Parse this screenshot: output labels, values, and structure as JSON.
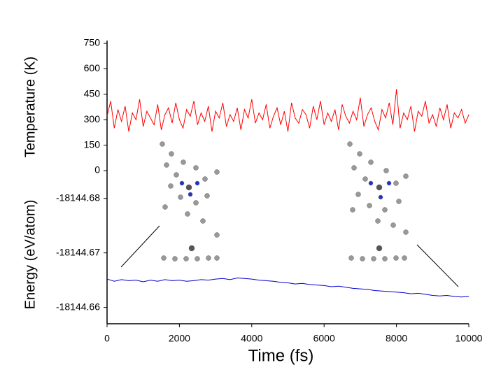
{
  "chart_data": [
    {
      "type": "line",
      "ylabel": "Temperature (K)",
      "x": [
        0,
        100,
        200,
        300,
        400,
        500,
        600,
        700,
        800,
        900,
        1000,
        1100,
        1200,
        1300,
        1400,
        1500,
        1600,
        1700,
        1800,
        1900,
        2000,
        2100,
        2200,
        2300,
        2400,
        2500,
        2600,
        2700,
        2800,
        2900,
        3000,
        3100,
        3200,
        3300,
        3400,
        3500,
        3600,
        3700,
        3800,
        3900,
        4000,
        4100,
        4200,
        4300,
        4400,
        4500,
        4600,
        4700,
        4800,
        4900,
        5000,
        5100,
        5200,
        5300,
        5400,
        5500,
        5600,
        5700,
        5800,
        5900,
        6000,
        6100,
        6200,
        6300,
        6400,
        6500,
        6600,
        6700,
        6800,
        6900,
        7000,
        7100,
        7200,
        7300,
        7400,
        7500,
        7600,
        7700,
        7800,
        7900,
        8000,
        8100,
        8200,
        8300,
        8400,
        8500,
        8600,
        8700,
        8800,
        8900,
        9000,
        9100,
        9200,
        9300,
        9400,
        9500,
        9600,
        9700,
        9800,
        9900,
        10000
      ],
      "series": [
        {
          "color": "#ff0000",
          "values": [
            320,
            410,
            250,
            360,
            290,
            380,
            230,
            340,
            300,
            420,
            260,
            350,
            310,
            270,
            390,
            240,
            330,
            370,
            280,
            400,
            300,
            250,
            360,
            320,
            410,
            270,
            340,
            290,
            380,
            230,
            350,
            310,
            400,
            260,
            330,
            290,
            370,
            240,
            360,
            310,
            420,
            280,
            340,
            300,
            390,
            250,
            320,
            370,
            270,
            350,
            230,
            400,
            310,
            280,
            360,
            330,
            250,
            380,
            300,
            410,
            270,
            340,
            290,
            360,
            240,
            390,
            320,
            280,
            350,
            300,
            430,
            260,
            330,
            370,
            290,
            240,
            360,
            310,
            400,
            270,
            480,
            250,
            340,
            300,
            380,
            230,
            350,
            320,
            410,
            280,
            330,
            260,
            370,
            300,
            390,
            250,
            340,
            310,
            360,
            280,
            330
          ]
        }
      ],
      "xlim": [
        0,
        10000
      ],
      "ylim": [
        0,
        750
      ],
      "yticks": [
        0,
        150,
        300,
        450,
        600,
        750
      ]
    },
    {
      "type": "line",
      "ylabel": "Energy (eV/atom)",
      "xlabel": "Time (fs)",
      "x": [
        0,
        200,
        400,
        600,
        800,
        1000,
        1200,
        1400,
        1600,
        1800,
        2000,
        2200,
        2400,
        2600,
        2800,
        3000,
        3200,
        3400,
        3600,
        3800,
        4000,
        4200,
        4400,
        4600,
        4800,
        5000,
        5200,
        5400,
        5600,
        5800,
        6000,
        6200,
        6400,
        6600,
        6800,
        7000,
        7200,
        7400,
        7600,
        7800,
        8000,
        8200,
        8400,
        8600,
        8800,
        9000,
        9200,
        9400,
        9600,
        9800,
        10000
      ],
      "series": [
        {
          "color": "#0000cc",
          "values": [
            -18144.6652,
            -18144.6648,
            -18144.6651,
            -18144.6649,
            -18144.665,
            -18144.6647,
            -18144.665,
            -18144.6648,
            -18144.6651,
            -18144.6649,
            -18144.665,
            -18144.6648,
            -18144.6649,
            -18144.6651,
            -18144.665,
            -18144.6652,
            -18144.6653,
            -18144.6651,
            -18144.6654,
            -18144.6653,
            -18144.6652,
            -18144.665,
            -18144.6649,
            -18144.6648,
            -18144.6646,
            -18144.6645,
            -18144.6643,
            -18144.6644,
            -18144.6642,
            -18144.6641,
            -18144.664,
            -18144.6638,
            -18144.6639,
            -18144.6637,
            -18144.6635,
            -18144.6634,
            -18144.6633,
            -18144.6631,
            -18144.663,
            -18144.6629,
            -18144.6628,
            -18144.6627,
            -18144.6625,
            -18144.6626,
            -18144.6624,
            -18144.6622,
            -18144.6621,
            -18144.6622,
            -18144.662,
            -18144.6619,
            -18144.662
          ]
        }
      ],
      "xlim": [
        0,
        10000
      ],
      "xticks": [
        0,
        2000,
        4000,
        6000,
        8000,
        10000
      ],
      "ylim": [
        -18144.657,
        -18144.6824
      ],
      "yticks": [
        -18144.68,
        -18144.67,
        -18144.66
      ]
    }
  ]
}
